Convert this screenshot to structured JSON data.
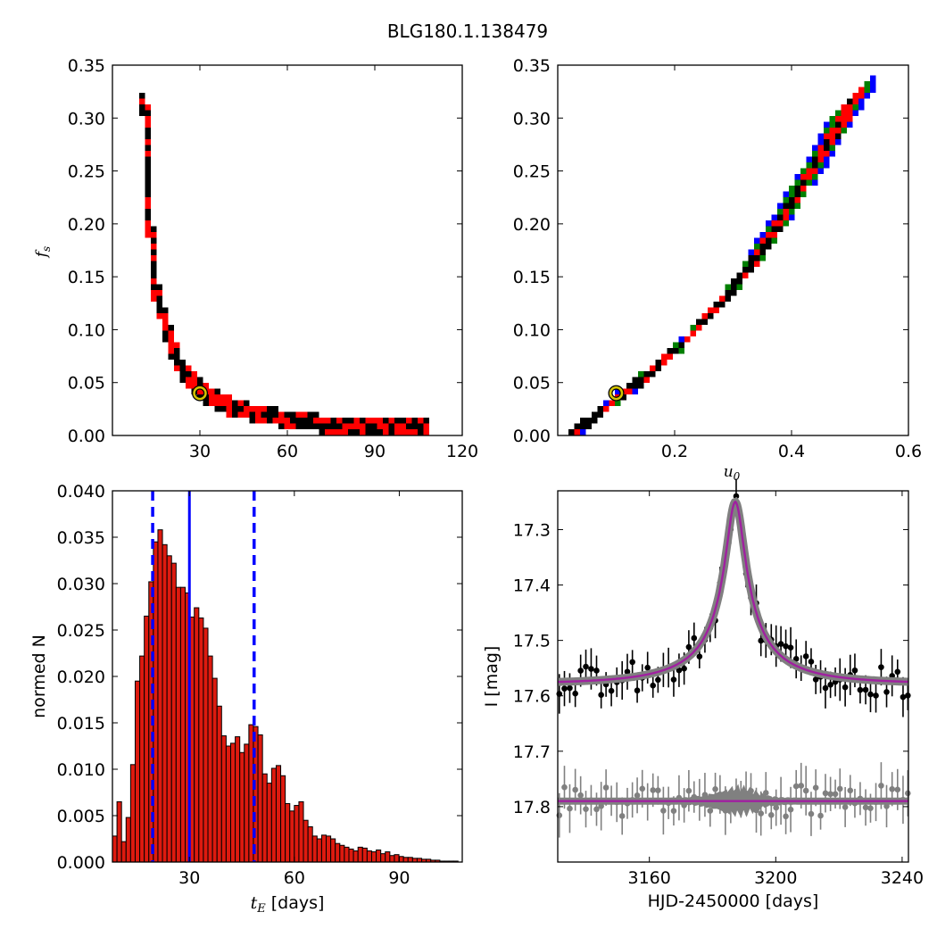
{
  "figure_title": "BLG180.1.138479",
  "chart_data": [
    {
      "type": "heatmap",
      "panel": "fs-vs-tE",
      "xlabel": "",
      "ylabel": "f_s",
      "xlim": [
        0,
        120
      ],
      "ylim": [
        0.0,
        0.35
      ],
      "xticks": [
        30,
        60,
        90,
        120
      ],
      "yticks": [
        "0.00",
        "0.05",
        "0.10",
        "0.15",
        "0.20",
        "0.25",
        "0.30",
        "0.35"
      ],
      "colors": {
        "outer": "#0000ff",
        "middle": "#008000",
        "inner": "#ff0000",
        "core": "#000000",
        "marker": "#d4c400"
      },
      "best_fit": {
        "x": 30,
        "y": 0.04
      },
      "ridge": [
        [
          10,
          0.32
        ],
        [
          11,
          0.25
        ],
        [
          12,
          0.2
        ],
        [
          13,
          0.17
        ],
        [
          14,
          0.14
        ],
        [
          16,
          0.12
        ],
        [
          18,
          0.1
        ],
        [
          20,
          0.085
        ],
        [
          22,
          0.07
        ],
        [
          25,
          0.058
        ],
        [
          28,
          0.048
        ],
        [
          32,
          0.04
        ],
        [
          36,
          0.034
        ],
        [
          42,
          0.028
        ],
        [
          50,
          0.022
        ],
        [
          60,
          0.018
        ],
        [
          70,
          0.014
        ],
        [
          80,
          0.012
        ],
        [
          95,
          0.01
        ],
        [
          106,
          0.01
        ]
      ]
    },
    {
      "type": "heatmap",
      "panel": "fs-vs-u0",
      "xlabel": "u_0",
      "ylabel": "",
      "xlim": [
        0.0,
        0.6
      ],
      "ylim": [
        0.0,
        0.35
      ],
      "xticks": [
        "0.2",
        "0.4",
        "0.6"
      ],
      "yticks": [
        "0.00",
        "0.05",
        "0.10",
        "0.15",
        "0.20",
        "0.25",
        "0.30",
        "0.35"
      ],
      "colors": {
        "outer": "#0000ff",
        "middle": "#008000",
        "inner": "#ff0000",
        "core": "#000000",
        "marker": "#d4c400"
      },
      "best_fit": {
        "x": 0.1,
        "y": 0.04
      },
      "ridge": [
        [
          0.03,
          0.01
        ],
        [
          0.06,
          0.02
        ],
        [
          0.1,
          0.04
        ],
        [
          0.14,
          0.055
        ],
        [
          0.18,
          0.075
        ],
        [
          0.22,
          0.095
        ],
        [
          0.26,
          0.12
        ],
        [
          0.3,
          0.145
        ],
        [
          0.34,
          0.175
        ],
        [
          0.38,
          0.21
        ],
        [
          0.42,
          0.245
        ],
        [
          0.46,
          0.28
        ],
        [
          0.5,
          0.32
        ]
      ]
    },
    {
      "type": "bar",
      "panel": "tE-histogram",
      "xlabel": "t_E [days]",
      "ylabel": "normed N",
      "xlim": [
        8,
        108
      ],
      "ylim": [
        0.0,
        0.04
      ],
      "xticks": [
        30,
        60,
        90
      ],
      "yticks": [
        "0.000",
        "0.005",
        "0.010",
        "0.015",
        "0.020",
        "0.025",
        "0.030",
        "0.035",
        "0.040"
      ],
      "bin_start": 8,
      "bin_width": 1.3,
      "values": [
        0.0028,
        0.0065,
        0.0022,
        0.0048,
        0.0105,
        0.0195,
        0.0222,
        0.0265,
        0.0302,
        0.0345,
        0.0358,
        0.0342,
        0.033,
        0.0322,
        0.0296,
        0.0296,
        0.029,
        0.0264,
        0.0274,
        0.0263,
        0.0252,
        0.0222,
        0.0198,
        0.0168,
        0.0136,
        0.0125,
        0.0128,
        0.0135,
        0.0118,
        0.0127,
        0.0148,
        0.0146,
        0.0137,
        0.0095,
        0.0085,
        0.0101,
        0.0104,
        0.0093,
        0.0063,
        0.0055,
        0.0061,
        0.0065,
        0.0045,
        0.0038,
        0.0028,
        0.0025,
        0.0029,
        0.0028,
        0.0025,
        0.002,
        0.0018,
        0.0016,
        0.0014,
        0.0012,
        0.0016,
        0.0015,
        0.0012,
        0.0011,
        0.0013,
        0.0009,
        0.0011,
        0.0007,
        0.0008,
        0.0006,
        0.0005,
        0.0005,
        0.0004,
        0.0004,
        0.0003,
        0.0003,
        0.0002,
        0.0002,
        0.0001,
        0.0001,
        0.0001,
        0.0001
      ],
      "bar_color": "#dd1a0f",
      "median_line": 30,
      "bound_lines": [
        19.5,
        48.5
      ],
      "line_color": "#0000ff"
    },
    {
      "type": "scatter",
      "panel": "light-curve",
      "xlabel": "HJD-2450000 [days]",
      "ylabel": "I [mag]",
      "xlim": [
        3131,
        3242
      ],
      "ylim": [
        17.9,
        17.23
      ],
      "xticks": [
        3160,
        3200,
        3240
      ],
      "yticks": [
        "17.3",
        "17.4",
        "17.5",
        "17.6",
        "17.7",
        "17.8"
      ],
      "model": {
        "t0": 3187.2,
        "tE": 30,
        "u0": 0.1,
        "baseline": 17.578,
        "peak": 17.25,
        "residual_baseline": 17.79
      },
      "colors": {
        "data": "#000000",
        "residuals": "#808080",
        "model": "#a020a0",
        "model_band": "#808080"
      },
      "data_scatter": 0.028,
      "error_bar_half": 0.03
    }
  ]
}
